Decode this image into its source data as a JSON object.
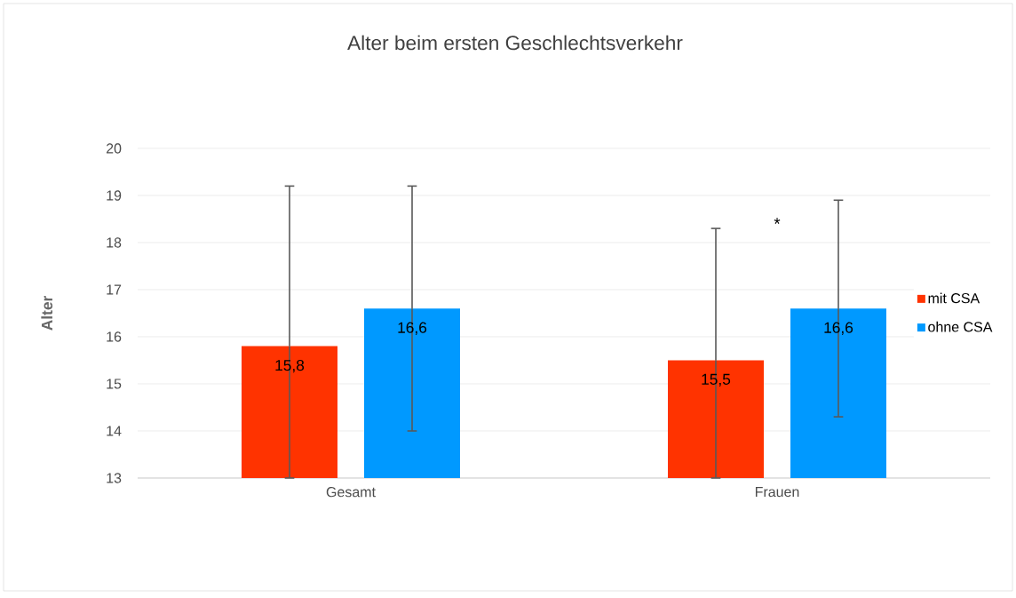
{
  "chart_data": {
    "type": "bar",
    "title": "Alter beim ersten Geschlechtsverkehr",
    "ylabel": "Alter",
    "categories": [
      "Gesamt",
      "Frauen"
    ],
    "series": [
      {
        "name": "mit CSA",
        "color": "#ff3300",
        "values": [
          15.8,
          15.5
        ],
        "value_labels": [
          "15,8",
          "15,5"
        ],
        "errors": [
          [
            13,
            19.2
          ],
          [
            13,
            18.3
          ]
        ]
      },
      {
        "name": "ohne CSA",
        "color": "#0099ff",
        "values": [
          16.6,
          16.6
        ],
        "value_labels": [
          "16,6",
          "16,6"
        ],
        "errors": [
          [
            14,
            19.2
          ],
          [
            14.3,
            18.9
          ]
        ]
      }
    ],
    "ylim": [
      13,
      20
    ],
    "yticks": [
      13,
      14,
      15,
      16,
      17,
      18,
      19,
      20
    ],
    "grid": "y",
    "legend": "right",
    "annotations": [
      "*"
    ]
  }
}
